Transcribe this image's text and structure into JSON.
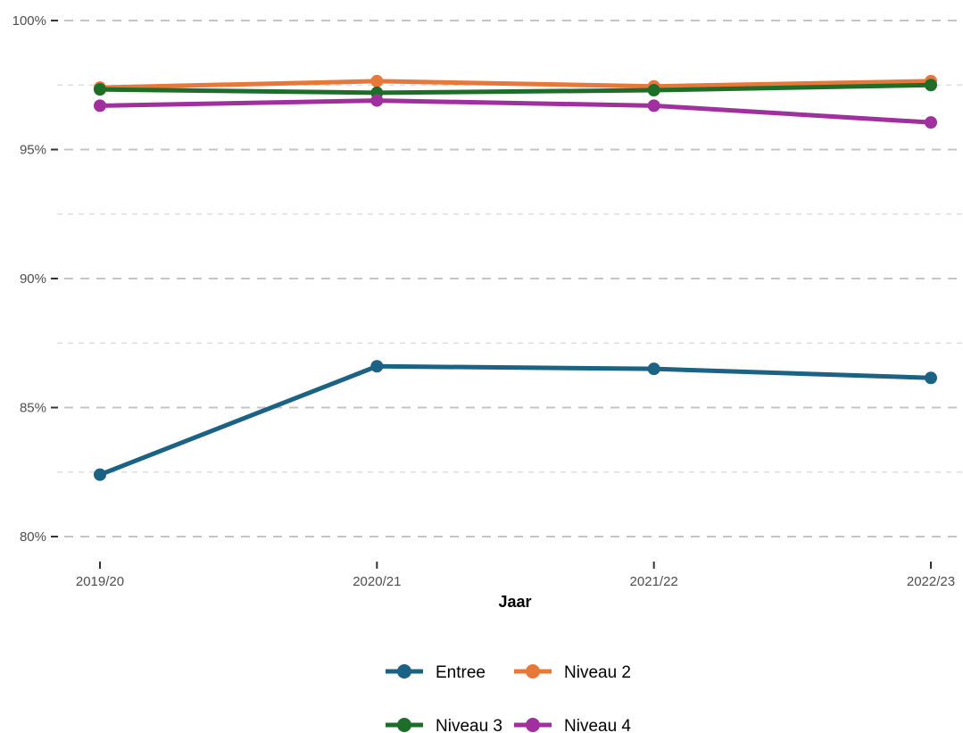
{
  "chart_data": {
    "type": "line",
    "title": "",
    "xlabel": "Jaar",
    "ylabel": "",
    "categories": [
      "2019/20",
      "2020/21",
      "2021/22",
      "2022/23"
    ],
    "ylim": [
      0.79,
      1.0
    ],
    "y_ticks": [
      0.8,
      0.85,
      0.9,
      0.95,
      1.0
    ],
    "y_tick_labels": [
      "80%",
      "85%",
      "90%",
      "95%",
      "100%"
    ],
    "y_minor_ticks": [
      0.825,
      0.875,
      0.925,
      0.975
    ],
    "grid": "horizontal dashed",
    "legend_position": "bottom",
    "series": [
      {
        "name": "Entree",
        "color": "#1b6284",
        "values": [
          0.824,
          0.866,
          0.865,
          0.8615
        ]
      },
      {
        "name": "Niveau 2",
        "color": "#e8773a",
        "values": [
          0.974,
          0.9765,
          0.9745,
          0.9765
        ]
      },
      {
        "name": "Niveau 3",
        "color": "#1e6e2a",
        "values": [
          0.9733,
          0.972,
          0.973,
          0.975
        ]
      },
      {
        "name": "Niveau 4",
        "color": "#a0309e",
        "values": [
          0.967,
          0.969,
          0.967,
          0.9605
        ]
      }
    ]
  }
}
